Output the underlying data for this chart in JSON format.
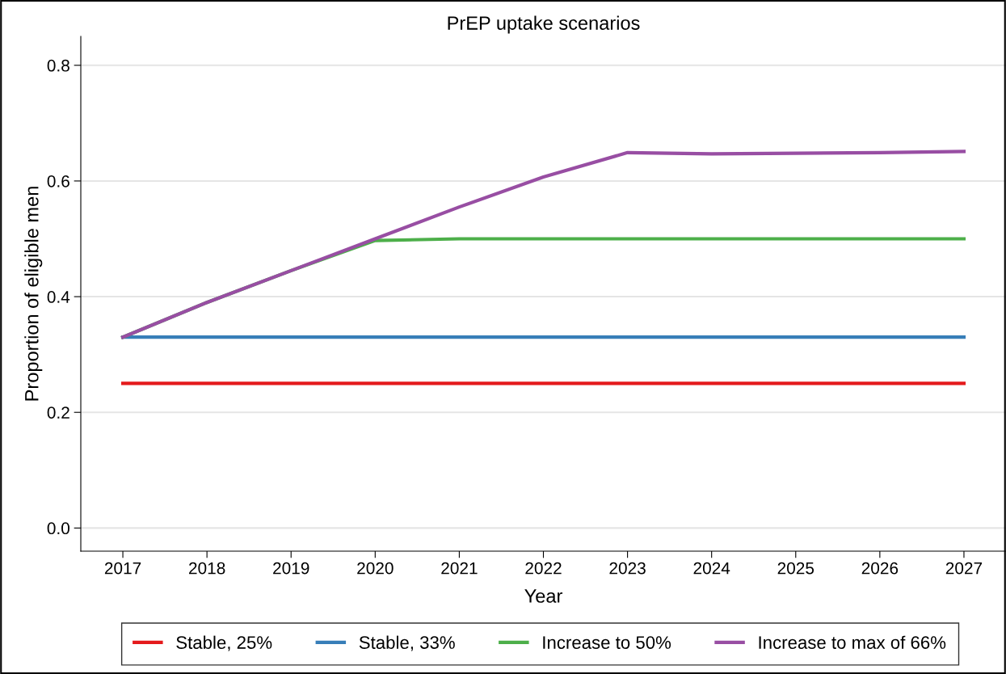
{
  "chart_data": {
    "type": "line",
    "title": "PrEP uptake scenarios",
    "xlabel": "Year",
    "ylabel": "Proportion of eligible men",
    "x": [
      2017,
      2018,
      2019,
      2020,
      2021,
      2022,
      2023,
      2024,
      2025,
      2026,
      2027
    ],
    "series": [
      {
        "name": "Stable, 25%",
        "color": "#e41a1c",
        "values": [
          0.25,
          0.25,
          0.25,
          0.25,
          0.25,
          0.25,
          0.25,
          0.25,
          0.25,
          0.25,
          0.25
        ]
      },
      {
        "name": "Stable, 33%",
        "color": "#377eb8",
        "values": [
          0.33,
          0.33,
          0.33,
          0.33,
          0.33,
          0.33,
          0.33,
          0.33,
          0.33,
          0.33,
          0.33
        ]
      },
      {
        "name": "Increase to 50%",
        "color": "#4daf4a",
        "values": [
          0.33,
          0.39,
          0.445,
          0.497,
          0.5,
          0.5,
          0.5,
          0.5,
          0.5,
          0.5,
          0.5
        ]
      },
      {
        "name": "Increase to max of 66%",
        "color": "#984ea3",
        "values": [
          0.33,
          0.39,
          0.445,
          0.5,
          0.555,
          0.607,
          0.649,
          0.647,
          0.648,
          0.649,
          0.651
        ]
      }
    ],
    "xlim": [
      2016.5,
      2027.5
    ],
    "xticks": [
      2017,
      2018,
      2019,
      2020,
      2021,
      2022,
      2023,
      2024,
      2025,
      2026,
      2027
    ],
    "ylim": [
      -0.04,
      0.85
    ],
    "yticks": [
      {
        "value": 0,
        "label": "0.0"
      },
      {
        "value": 0.2,
        "label": "0.2"
      },
      {
        "value": 0.4,
        "label": "0.4"
      },
      {
        "value": 0.6,
        "label": "0.6"
      },
      {
        "value": 0.8,
        "label": "0.8"
      }
    ],
    "grid": "y",
    "legend": "bottom",
    "line_style": "solid",
    "marker": "none"
  }
}
